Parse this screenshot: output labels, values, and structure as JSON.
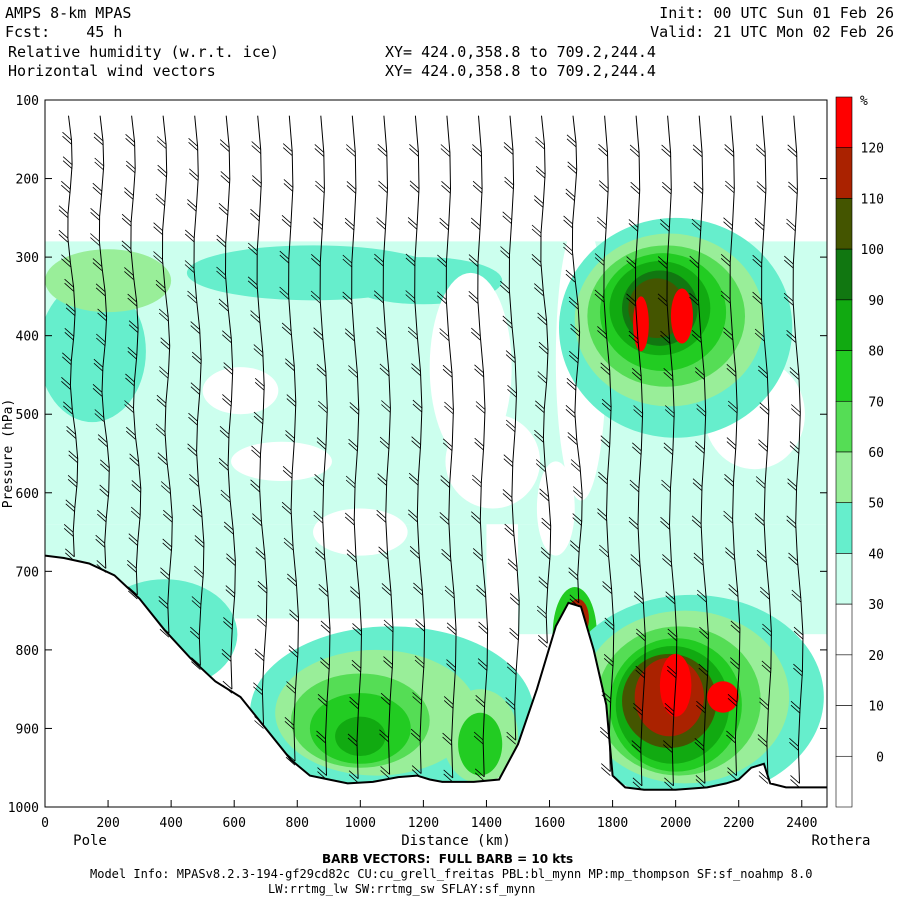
{
  "header": {
    "model": "AMPS 8-km MPAS",
    "fcst": "Fcst:    45 h",
    "field1": "Relative humidity (w.r.t. ice)",
    "field2": "Horizontal wind vectors",
    "xy1": "XY= 424.0,358.8 to 709.2,244.4",
    "xy2": "XY= 424.0,358.8 to 709.2,244.4",
    "init": "Init: 00 UTC Sun 01 Feb 26",
    "valid": "Valid: 21 UTC Mon 02 Feb 26"
  },
  "footer": {
    "barb_note": "BARB VECTORS:  FULL BARB = 10 kts",
    "model_info": "Model Info: MPASv8.2.3-194-gf29cd82c CU:cu_grell_freitas PBL:bl_mynn MP:mp_thompson SF:sf_noahmp 8.0",
    "model_info2": "LW:rrtmg_lw SW:rrtmg_sw SFLAY:sf_mynn"
  },
  "chart_data": {
    "type": "heatmap",
    "title": "Relative humidity (w.r.t. ice) cross section with horizontal wind vectors",
    "xlabel": "Distance (km)",
    "ylabel": "Pressure (hPa)",
    "xlim": [
      0,
      2480
    ],
    "ylim": [
      1000,
      100
    ],
    "x_ticks": [
      0,
      200,
      400,
      600,
      800,
      1000,
      1200,
      1400,
      1600,
      1800,
      2000,
      2200,
      2400
    ],
    "y_ticks": [
      100,
      200,
      300,
      400,
      500,
      600,
      700,
      800,
      900,
      1000
    ],
    "x_endpoint_labels": [
      "Pole",
      "Rothera"
    ],
    "colorbar": {
      "unit": "%",
      "tick_labels": [
        "0",
        "10",
        "20",
        "30",
        "40",
        "50",
        "60",
        "70",
        "80",
        "90",
        "100",
        "110",
        "120"
      ],
      "levels": [
        -10,
        0,
        10,
        20,
        30,
        40,
        50,
        60,
        70,
        80,
        90,
        100,
        110,
        120,
        130
      ],
      "colors": [
        "#ffffff",
        "#ffffff",
        "#ffffff",
        "#ffffff",
        "#ccffee",
        "#66eecc",
        "#99ee99",
        "#55dd55",
        "#22cc22",
        "#11aa11",
        "#117711",
        "#445500",
        "#aa2200",
        "#ff0000"
      ]
    },
    "terrain": {
      "x": [
        0,
        60,
        140,
        220,
        300,
        380,
        460,
        540,
        620,
        700,
        780,
        840,
        900,
        960,
        1040,
        1120,
        1180,
        1220,
        1260,
        1360,
        1440,
        1500,
        1560,
        1620,
        1660,
        1700,
        1740,
        1780,
        1800,
        1840,
        1900,
        2000,
        2100,
        2160,
        2200,
        2240,
        2280,
        2300,
        2350,
        2400,
        2440,
        2480
      ],
      "pressure": [
        680,
        683,
        690,
        705,
        735,
        775,
        810,
        840,
        860,
        900,
        940,
        960,
        965,
        970,
        968,
        962,
        960,
        965,
        968,
        968,
        965,
        920,
        850,
        770,
        740,
        745,
        800,
        870,
        960,
        975,
        978,
        978,
        975,
        970,
        965,
        950,
        945,
        970,
        975,
        975,
        975,
        975
      ]
    },
    "rh_features": [
      {
        "name": "upper cloud layer",
        "x_range": [
          0,
          2480
        ],
        "pressure_range": [
          280,
          640
        ],
        "rh_percent": 40
      },
      {
        "name": "upper core",
        "x_center": 1950,
        "pressure_center": 360,
        "rh_percent": 120
      },
      {
        "name": "low-level moist layer",
        "x_range": [
          700,
          1500
        ],
        "pressure_range": [
          820,
          960
        ],
        "rh_percent": 80
      },
      {
        "name": "low-level core",
        "x_center": 2000,
        "pressure_center": 850,
        "rh_percent": 115
      }
    ],
    "wind_barbs": {
      "spacing_km": 100,
      "full_barb_kts": 10
    }
  }
}
